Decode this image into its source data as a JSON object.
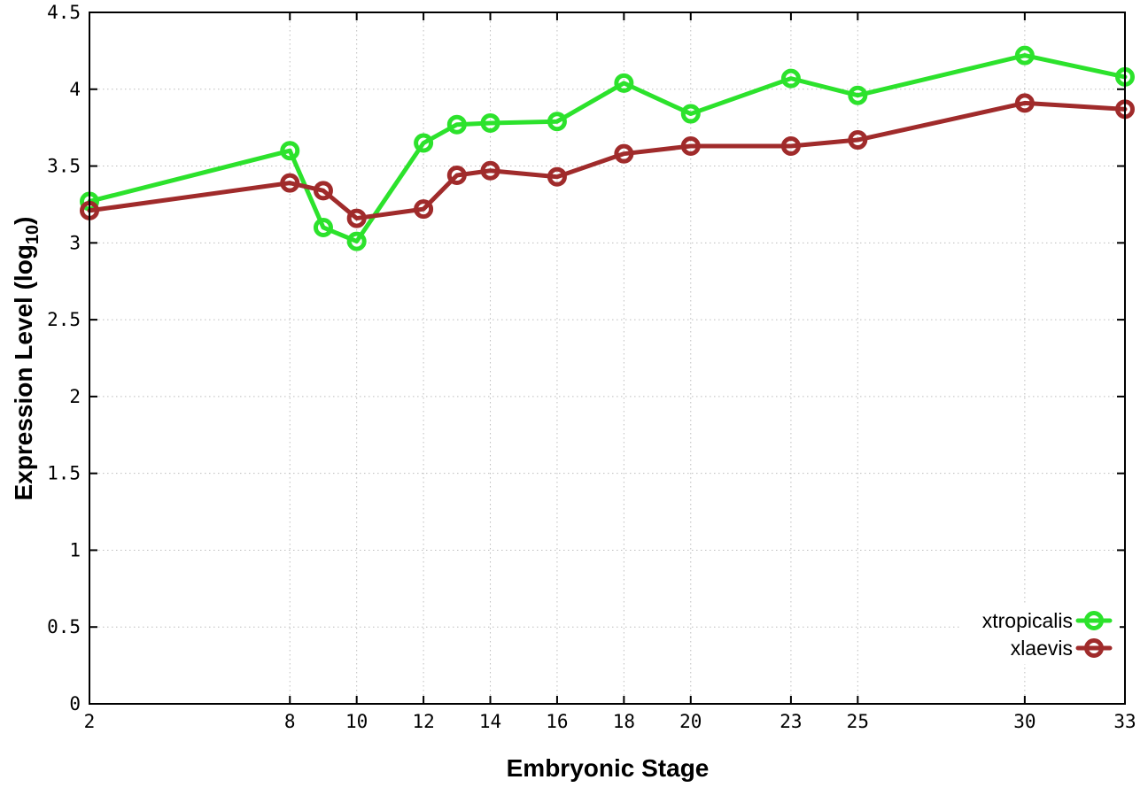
{
  "figure": {
    "xlabel": "Embryonic Stage",
    "ylabel": {
      "pre": "Expression Level (log",
      "sub": "10",
      "post": ")"
    }
  },
  "chart_data": {
    "type": "line",
    "title": "",
    "xlabel": "Embryonic Stage",
    "ylabel": "Expression Level (log10)",
    "xlim": [
      2,
      33
    ],
    "ylim": [
      0,
      4.5
    ],
    "grid": true,
    "grid_style": "dotted",
    "legend_position": "inside-bottom-right",
    "x": [
      2,
      8,
      9,
      10,
      12,
      13,
      14,
      16,
      18,
      20,
      23,
      25,
      30,
      33
    ],
    "x_tick_values": [
      2,
      8,
      10,
      12,
      14,
      16,
      18,
      20,
      23,
      25,
      30,
      33
    ],
    "x_tick_labels": [
      "2",
      "8",
      "10",
      "12",
      "14",
      "16",
      "18",
      "20",
      "23",
      "25",
      "30",
      "33"
    ],
    "y_tick_values": [
      0,
      0.5,
      1,
      1.5,
      2,
      2.5,
      3,
      3.5,
      4,
      4.5
    ],
    "y_tick_labels": [
      "0",
      "0.5",
      "1",
      "1.5",
      "2",
      "2.5",
      "3",
      "3.5",
      "4",
      "4.5"
    ],
    "series": [
      {
        "name": "xtropicalis",
        "color": "#2ce22c",
        "marker": "open-circle",
        "values": [
          3.27,
          3.6,
          3.1,
          3.01,
          3.65,
          3.77,
          3.78,
          3.79,
          4.04,
          3.84,
          4.07,
          3.96,
          4.22,
          4.08
        ]
      },
      {
        "name": "xlaevis",
        "color": "#a02b2b",
        "marker": "open-circle",
        "values": [
          3.21,
          3.39,
          3.34,
          3.16,
          3.22,
          3.44,
          3.47,
          3.43,
          3.58,
          3.63,
          3.63,
          3.67,
          3.91,
          3.87
        ]
      }
    ],
    "colors": {
      "axis": "#000000",
      "grid": "#bdbdbd",
      "text": "#000000",
      "legend_bg": "#ffffff"
    }
  }
}
